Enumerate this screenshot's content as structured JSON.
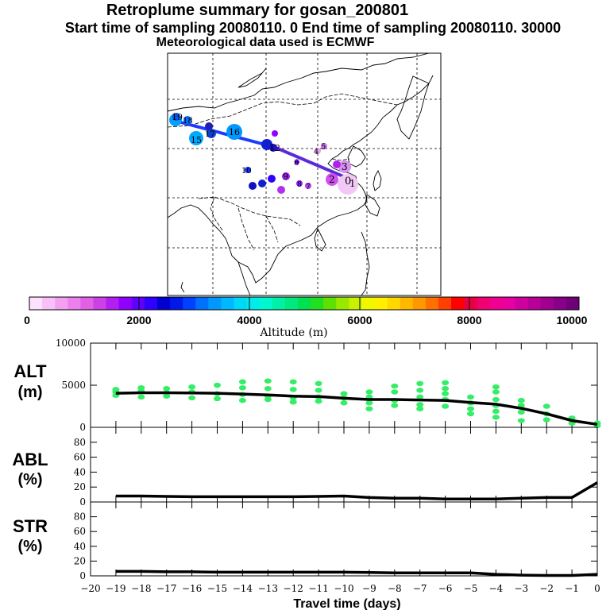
{
  "header": {
    "title": "Retroplume summary for gosan_200801",
    "sampling": "Start time of sampling 20080110.     0     End time of sampling 20080110. 30000",
    "met": "Meteorological data used is ECMWF"
  },
  "colorbar": {
    "label": "Altitude (m)",
    "ticks": [
      "0",
      "2000",
      "4000",
      "6000",
      "8000",
      "10000"
    ],
    "colors": [
      "#fde0fd",
      "#f8c0f8",
      "#f2a0f2",
      "#ec80ec",
      "#e060e6",
      "#cc40e6",
      "#b020f0",
      "#9000ff",
      "#6000ff",
      "#3000ff",
      "#0000d0",
      "#0018e8",
      "#0040ff",
      "#0070ff",
      "#0098ff",
      "#00b8ff",
      "#00d8f8",
      "#00ecec",
      "#00f8d0",
      "#00f0a8",
      "#00e880",
      "#00e050",
      "#20e020",
      "#60e000",
      "#98e800",
      "#c8f000",
      "#f0f800",
      "#fff000",
      "#ffd800",
      "#ffb800",
      "#ff9800",
      "#ff7000",
      "#ff4000",
      "#ff0000",
      "#e80040",
      "#f00070",
      "#f00090",
      "#e800a0",
      "#d000a0",
      "#b80098",
      "#a00090",
      "#880088",
      "#700078"
    ]
  },
  "map": {
    "labels": [
      "0",
      "1",
      "2",
      "3",
      "4",
      "5",
      "6",
      "7",
      "8",
      "9",
      "10",
      "12",
      "15",
      "16",
      "17",
      "18",
      "19"
    ]
  },
  "chart_data": [
    {
      "type": "line",
      "panel": "ALT",
      "ylabel": "ALT\n(m)",
      "ylabel_lines": [
        "ALT",
        "(m)"
      ],
      "ylim": [
        0,
        10000
      ],
      "yticks": [
        "0",
        "5000",
        "10000"
      ],
      "x": [
        -19,
        -18,
        -17,
        -16,
        -15,
        -14,
        -13,
        -12,
        -11,
        -10,
        -9,
        -8,
        -7,
        -6,
        -5,
        -4,
        -3,
        -2,
        -1,
        0
      ],
      "series": [
        {
          "name": "mean altitude",
          "values": [
            4050,
            4100,
            4100,
            4080,
            4050,
            3950,
            3850,
            3700,
            3650,
            3450,
            3300,
            3300,
            3250,
            3200,
            2950,
            2750,
            2250,
            1600,
            800,
            350
          ]
        }
      ],
      "scatter_points": [
        [
          -19,
          3800
        ],
        [
          -19,
          4200
        ],
        [
          -19,
          4500
        ],
        [
          -18,
          3600
        ],
        [
          -18,
          4300
        ],
        [
          -18,
          4700
        ],
        [
          -17,
          3700
        ],
        [
          -17,
          4100
        ],
        [
          -17,
          4600
        ],
        [
          -16,
          3500
        ],
        [
          -16,
          4200
        ],
        [
          -16,
          4800
        ],
        [
          -15,
          3400
        ],
        [
          -15,
          4000
        ],
        [
          -15,
          5000
        ],
        [
          -14,
          3200
        ],
        [
          -14,
          3900
        ],
        [
          -14,
          4700
        ],
        [
          -14,
          5400
        ],
        [
          -13,
          3300
        ],
        [
          -13,
          3700
        ],
        [
          -13,
          4600
        ],
        [
          -13,
          5500
        ],
        [
          -12,
          3000
        ],
        [
          -12,
          3500
        ],
        [
          -12,
          4500
        ],
        [
          -12,
          5400
        ],
        [
          -11,
          3100
        ],
        [
          -11,
          3600
        ],
        [
          -11,
          4400
        ],
        [
          -11,
          5200
        ],
        [
          -10,
          2900
        ],
        [
          -10,
          3500
        ],
        [
          -10,
          4000
        ],
        [
          -9,
          2200
        ],
        [
          -9,
          2900
        ],
        [
          -9,
          3600
        ],
        [
          -9,
          4200
        ],
        [
          -8,
          2600
        ],
        [
          -8,
          3200
        ],
        [
          -8,
          4200
        ],
        [
          -8,
          4900
        ],
        [
          -7,
          2200
        ],
        [
          -7,
          2700
        ],
        [
          -7,
          3600
        ],
        [
          -7,
          4400
        ],
        [
          -7,
          5200
        ],
        [
          -6,
          2500
        ],
        [
          -6,
          3300
        ],
        [
          -6,
          4000
        ],
        [
          -6,
          4600
        ],
        [
          -6,
          5300
        ],
        [
          -5,
          1600
        ],
        [
          -5,
          2200
        ],
        [
          -5,
          2900
        ],
        [
          -5,
          3600
        ],
        [
          -4,
          1200
        ],
        [
          -4,
          1900
        ],
        [
          -4,
          2600
        ],
        [
          -4,
          3300
        ],
        [
          -4,
          4200
        ],
        [
          -4,
          4800
        ],
        [
          -3,
          800
        ],
        [
          -3,
          1800
        ],
        [
          -3,
          2600
        ],
        [
          -3,
          3200
        ],
        [
          -2,
          900
        ],
        [
          -2,
          1600
        ],
        [
          -2,
          2500
        ],
        [
          -1,
          500
        ],
        [
          -1,
          1100
        ],
        [
          0,
          200
        ],
        [
          0,
          500
        ]
      ]
    },
    {
      "type": "line",
      "panel": "ABL",
      "ylabel_lines": [
        "ABL",
        "(%)"
      ],
      "ylim": [
        0,
        100
      ],
      "yticks": [
        "0",
        "20",
        "40",
        "60",
        "80"
      ],
      "x": [
        -19,
        -18,
        -17,
        -16,
        -15,
        -14,
        -13,
        -12,
        -11,
        -10,
        -9,
        -8,
        -7,
        -6,
        -5,
        -4,
        -3,
        -2,
        -1,
        0
      ],
      "series": [
        {
          "name": "ABL fraction",
          "values": [
            8,
            8,
            7.5,
            7,
            7,
            7,
            7,
            7,
            7.5,
            8,
            6,
            5,
            5,
            4,
            4,
            4,
            5,
            6,
            6,
            26
          ]
        }
      ]
    },
    {
      "type": "line",
      "panel": "STR",
      "ylabel_lines": [
        "STR",
        "(%)"
      ],
      "ylim": [
        0,
        100
      ],
      "yticks": [
        "0",
        "20",
        "40",
        "60",
        "80"
      ],
      "x": [
        -19,
        -18,
        -17,
        -16,
        -15,
        -14,
        -13,
        -12,
        -11,
        -10,
        -9,
        -8,
        -7,
        -6,
        -5,
        -4,
        -3,
        -2,
        -1,
        0
      ],
      "series": [
        {
          "name": "stratosphere fraction",
          "values": [
            6,
            6,
            5.5,
            5.5,
            5,
            5,
            5,
            5,
            5,
            5,
            4.5,
            4,
            4,
            4,
            4,
            2,
            1,
            0.5,
            0.5,
            2
          ]
        }
      ]
    }
  ],
  "xaxis": {
    "label": "Travel time (days)",
    "ticks": [
      "−20",
      "−19",
      "−18",
      "−17",
      "−16",
      "−15",
      "−14",
      "−13",
      "−12",
      "−11",
      "−10",
      "−9",
      "−8",
      "−7",
      "−6",
      "−5",
      "−4",
      "−3",
      "−2",
      "−1",
      "0"
    ]
  }
}
